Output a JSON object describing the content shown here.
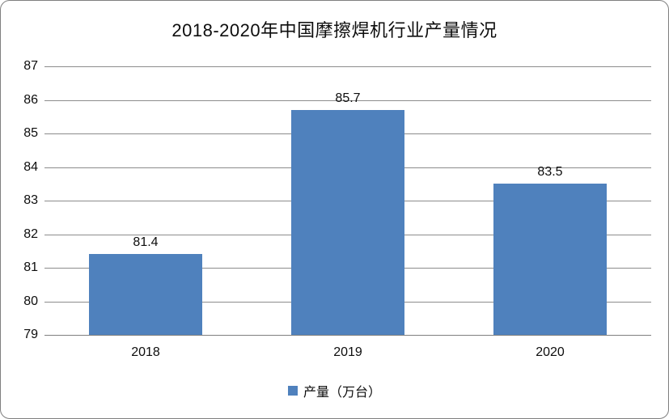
{
  "chart_data": {
    "type": "bar",
    "title": "2018-2020年中国摩擦焊机行业产量情况",
    "categories": [
      "2018",
      "2019",
      "2020"
    ],
    "series": [
      {
        "name": "产量（万台）",
        "values": [
          81.4,
          85.7,
          83.5
        ]
      }
    ],
    "data_labels": [
      "81.4",
      "85.7",
      "83.5"
    ],
    "ylabel": "",
    "xlabel": "",
    "ylim": [
      79,
      87
    ],
    "ytick_step": 1,
    "yticks": [
      "79",
      "80",
      "81",
      "82",
      "83",
      "84",
      "85",
      "86",
      "87"
    ],
    "grid": true,
    "legend_position": "bottom",
    "colors": {
      "bar": "#4F81BD",
      "gridline": "#8C8C8C",
      "axis": "#808080",
      "frame_border": "#7F7F7F",
      "text": "#0d0d0d",
      "background": "#ffffff"
    }
  }
}
